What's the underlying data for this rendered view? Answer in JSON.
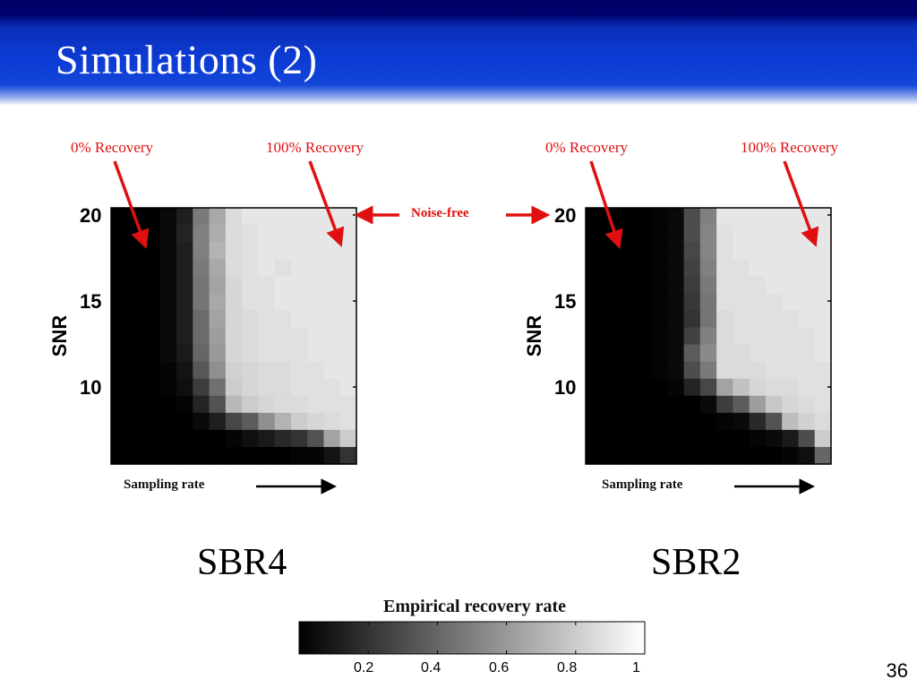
{
  "slide": {
    "title": "Simulations (2)",
    "page_number": "36",
    "noise_free_label": "Noise-free"
  },
  "colors": {
    "header_dark": "#00006a",
    "header_blue": "#0c3cd6",
    "annotation_red": "#e01010"
  },
  "colorbar": {
    "title": "Empirical recovery rate",
    "ticks": [
      "0.2",
      "0.4",
      "0.6",
      "0.8",
      "1"
    ],
    "range": [
      0,
      1
    ],
    "colormap": "gray"
  },
  "chart_data": [
    {
      "type": "heatmap",
      "name": "SBR4",
      "caption": "SBR4",
      "ylabel": "SNR",
      "xlabel": "Sampling rate",
      "yticks": [
        "20",
        "15",
        "10"
      ],
      "annotation_left": "0% Recovery",
      "annotation_right": "100% Recovery",
      "grid": "off",
      "values": [
        [
          0.0,
          0.0,
          0.0,
          0.04,
          0.12,
          0.48,
          0.66,
          0.86,
          0.9,
          0.9,
          0.9,
          0.9,
          0.9,
          0.9,
          0.9
        ],
        [
          0.0,
          0.0,
          0.0,
          0.04,
          0.14,
          0.5,
          0.68,
          0.86,
          0.88,
          0.9,
          0.9,
          0.9,
          0.9,
          0.9,
          0.9
        ],
        [
          0.0,
          0.0,
          0.0,
          0.04,
          0.12,
          0.5,
          0.7,
          0.86,
          0.88,
          0.9,
          0.9,
          0.9,
          0.9,
          0.9,
          0.9
        ],
        [
          0.0,
          0.0,
          0.0,
          0.04,
          0.12,
          0.48,
          0.66,
          0.86,
          0.88,
          0.9,
          0.88,
          0.9,
          0.9,
          0.9,
          0.9
        ],
        [
          0.0,
          0.0,
          0.0,
          0.04,
          0.12,
          0.46,
          0.64,
          0.84,
          0.88,
          0.88,
          0.9,
          0.9,
          0.9,
          0.9,
          0.9
        ],
        [
          0.0,
          0.0,
          0.0,
          0.04,
          0.12,
          0.46,
          0.66,
          0.84,
          0.88,
          0.88,
          0.9,
          0.9,
          0.9,
          0.9,
          0.9
        ],
        [
          0.0,
          0.0,
          0.0,
          0.04,
          0.12,
          0.42,
          0.64,
          0.84,
          0.86,
          0.88,
          0.88,
          0.9,
          0.9,
          0.9,
          0.9
        ],
        [
          0.0,
          0.0,
          0.0,
          0.04,
          0.12,
          0.42,
          0.62,
          0.84,
          0.86,
          0.88,
          0.88,
          0.88,
          0.9,
          0.9,
          0.9
        ],
        [
          0.0,
          0.0,
          0.0,
          0.04,
          0.1,
          0.4,
          0.6,
          0.84,
          0.86,
          0.88,
          0.88,
          0.88,
          0.9,
          0.9,
          0.9
        ],
        [
          0.0,
          0.0,
          0.0,
          0.02,
          0.08,
          0.34,
          0.56,
          0.82,
          0.84,
          0.86,
          0.86,
          0.88,
          0.88,
          0.9,
          0.9
        ],
        [
          0.0,
          0.0,
          0.0,
          0.02,
          0.06,
          0.24,
          0.44,
          0.8,
          0.84,
          0.86,
          0.86,
          0.88,
          0.88,
          0.88,
          0.9
        ],
        [
          0.0,
          0.0,
          0.0,
          0.0,
          0.02,
          0.14,
          0.32,
          0.72,
          0.8,
          0.84,
          0.86,
          0.86,
          0.88,
          0.88,
          0.88
        ],
        [
          0.0,
          0.0,
          0.0,
          0.0,
          0.0,
          0.04,
          0.12,
          0.28,
          0.36,
          0.56,
          0.7,
          0.8,
          0.84,
          0.86,
          0.88
        ],
        [
          0.0,
          0.0,
          0.0,
          0.0,
          0.0,
          0.0,
          0.0,
          0.02,
          0.06,
          0.1,
          0.16,
          0.2,
          0.32,
          0.64,
          0.8
        ],
        [
          0.0,
          0.0,
          0.0,
          0.0,
          0.0,
          0.0,
          0.0,
          0.0,
          0.0,
          0.0,
          0.0,
          0.02,
          0.02,
          0.08,
          0.2
        ]
      ]
    },
    {
      "type": "heatmap",
      "name": "SBR2",
      "caption": "SBR2",
      "ylabel": "SNR",
      "xlabel": "Sampling rate",
      "yticks": [
        "20",
        "15",
        "10"
      ],
      "annotation_left": "0% Recovery",
      "annotation_right": "100% Recovery",
      "grid": "off",
      "values": [
        [
          0.0,
          0.0,
          0.0,
          0.0,
          0.02,
          0.04,
          0.3,
          0.5,
          0.9,
          0.9,
          0.9,
          0.9,
          0.9,
          0.9,
          0.9
        ],
        [
          0.0,
          0.0,
          0.0,
          0.0,
          0.02,
          0.04,
          0.3,
          0.52,
          0.88,
          0.9,
          0.9,
          0.9,
          0.9,
          0.9,
          0.9
        ],
        [
          0.0,
          0.0,
          0.0,
          0.0,
          0.02,
          0.04,
          0.28,
          0.52,
          0.88,
          0.9,
          0.9,
          0.9,
          0.9,
          0.9,
          0.9
        ],
        [
          0.0,
          0.0,
          0.0,
          0.0,
          0.02,
          0.04,
          0.26,
          0.5,
          0.88,
          0.88,
          0.9,
          0.9,
          0.9,
          0.9,
          0.9
        ],
        [
          0.0,
          0.0,
          0.0,
          0.0,
          0.02,
          0.04,
          0.24,
          0.48,
          0.88,
          0.88,
          0.88,
          0.9,
          0.9,
          0.9,
          0.9
        ],
        [
          0.0,
          0.0,
          0.0,
          0.0,
          0.02,
          0.04,
          0.22,
          0.46,
          0.88,
          0.88,
          0.88,
          0.88,
          0.9,
          0.9,
          0.9
        ],
        [
          0.0,
          0.0,
          0.0,
          0.0,
          0.02,
          0.04,
          0.2,
          0.46,
          0.86,
          0.88,
          0.88,
          0.88,
          0.88,
          0.9,
          0.9
        ],
        [
          0.0,
          0.0,
          0.0,
          0.0,
          0.02,
          0.04,
          0.26,
          0.5,
          0.86,
          0.88,
          0.88,
          0.88,
          0.88,
          0.88,
          0.9
        ],
        [
          0.0,
          0.0,
          0.0,
          0.0,
          0.02,
          0.04,
          0.36,
          0.54,
          0.86,
          0.86,
          0.88,
          0.88,
          0.88,
          0.88,
          0.9
        ],
        [
          0.0,
          0.0,
          0.0,
          0.0,
          0.02,
          0.04,
          0.3,
          0.48,
          0.86,
          0.86,
          0.86,
          0.88,
          0.88,
          0.88,
          0.88
        ],
        [
          0.0,
          0.0,
          0.0,
          0.0,
          0.0,
          0.02,
          0.14,
          0.28,
          0.64,
          0.76,
          0.84,
          0.86,
          0.86,
          0.88,
          0.88
        ],
        [
          0.0,
          0.0,
          0.0,
          0.0,
          0.0,
          0.0,
          0.0,
          0.04,
          0.24,
          0.36,
          0.62,
          0.78,
          0.84,
          0.86,
          0.88
        ],
        [
          0.0,
          0.0,
          0.0,
          0.0,
          0.0,
          0.0,
          0.0,
          0.0,
          0.02,
          0.04,
          0.16,
          0.32,
          0.74,
          0.82,
          0.86
        ],
        [
          0.0,
          0.0,
          0.0,
          0.0,
          0.0,
          0.0,
          0.0,
          0.0,
          0.0,
          0.0,
          0.02,
          0.04,
          0.1,
          0.3,
          0.8
        ],
        [
          0.0,
          0.0,
          0.0,
          0.0,
          0.0,
          0.0,
          0.0,
          0.0,
          0.0,
          0.0,
          0.0,
          0.0,
          0.02,
          0.06,
          0.4
        ]
      ]
    }
  ]
}
